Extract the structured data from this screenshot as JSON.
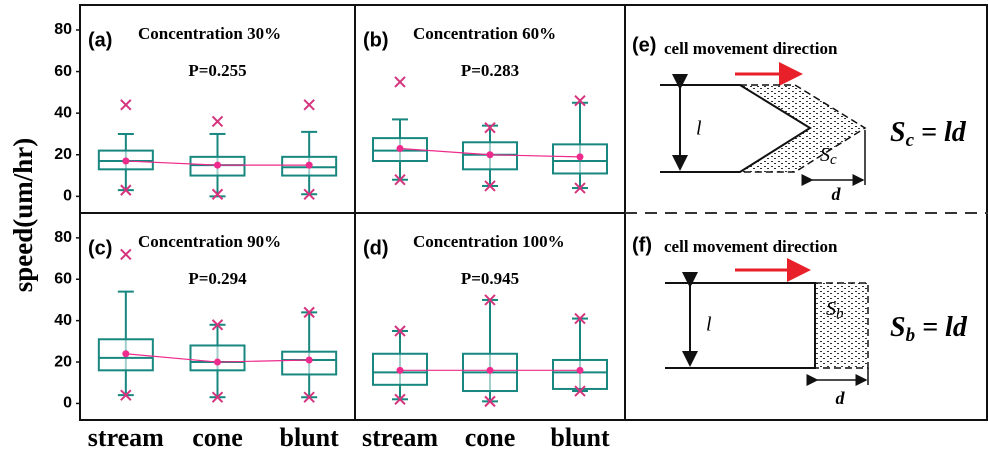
{
  "y_axis_label": "speed(um/hr)",
  "chart_data": [
    {
      "type": "box",
      "panel_label": "(a)",
      "title": "Concentration 30%",
      "annotation": "P=0.255",
      "ylim": [
        -8,
        92
      ],
      "yticks": [
        0,
        20,
        40,
        60,
        80
      ],
      "box_color": "#17877f",
      "mean_color": "#ee2a8c",
      "outlier_color": "#d6337e",
      "boxes": [
        {
          "whislo": 3,
          "q1": 13,
          "med": 17,
          "q3": 22,
          "whishi": 30,
          "mean": 17,
          "min": 3,
          "max": 44
        },
        {
          "whislo": 0,
          "q1": 10,
          "med": 15,
          "q3": 19,
          "whishi": 30,
          "mean": 15,
          "min": 1,
          "max": 36
        },
        {
          "whislo": 1,
          "q1": 10,
          "med": 14,
          "q3": 19,
          "whishi": 31,
          "mean": 15,
          "min": 1,
          "max": 44
        }
      ]
    },
    {
      "type": "box",
      "panel_label": "(b)",
      "title": "Concentration 60%",
      "annotation": "P=0.283",
      "ylim": [
        -8,
        92
      ],
      "box_color": "#17877f",
      "mean_color": "#ee2a8c",
      "outlier_color": "#d6337e",
      "boxes": [
        {
          "whislo": 8,
          "q1": 17,
          "med": 22,
          "q3": 28,
          "whishi": 37,
          "mean": 23,
          "min": 8,
          "max": 55
        },
        {
          "whislo": 5,
          "q1": 13,
          "med": 20,
          "q3": 26,
          "whishi": 34,
          "mean": 20,
          "min": 5,
          "max": 33
        },
        {
          "whislo": 4,
          "q1": 11,
          "med": 17,
          "q3": 25,
          "whishi": 45,
          "mean": 19,
          "min": 4,
          "max": 46
        }
      ]
    },
    {
      "type": "box",
      "panel_label": "(c)",
      "title": "Concentration 90%",
      "annotation": "P=0.294",
      "ylim": [
        -8,
        92
      ],
      "yticks": [
        0,
        20,
        40,
        60,
        80
      ],
      "categories": [
        "stream",
        "cone",
        "blunt"
      ],
      "box_color": "#17877f",
      "mean_color": "#ee2a8c",
      "outlier_color": "#d6337e",
      "boxes": [
        {
          "whislo": 4,
          "q1": 16,
          "med": 22,
          "q3": 31,
          "whishi": 54,
          "mean": 24,
          "min": 4,
          "max": 72
        },
        {
          "whislo": 3,
          "q1": 16,
          "med": 20,
          "q3": 28,
          "whishi": 38,
          "mean": 20,
          "min": 3,
          "max": 38
        },
        {
          "whislo": 3,
          "q1": 14,
          "med": 21,
          "q3": 25,
          "whishi": 44,
          "mean": 21,
          "min": 3,
          "max": 44
        }
      ]
    },
    {
      "type": "box",
      "panel_label": "(d)",
      "title": "Concentration 100%",
      "annotation": "P=0.945",
      "ylim": [
        -8,
        92
      ],
      "categories": [
        "stream",
        "cone",
        "blunt"
      ],
      "box_color": "#17877f",
      "mean_color": "#ee2a8c",
      "outlier_color": "#d6337e",
      "boxes": [
        {
          "whislo": 2,
          "q1": 9,
          "med": 15,
          "q3": 24,
          "whishi": 35,
          "mean": 16,
          "min": 2,
          "max": 35
        },
        {
          "whislo": 1,
          "q1": 6,
          "med": 15,
          "q3": 24,
          "whishi": 50,
          "mean": 16,
          "min": 1,
          "max": 50
        },
        {
          "whislo": 6,
          "q1": 7,
          "med": 15,
          "q3": 21,
          "whishi": 41,
          "mean": 16,
          "min": 6,
          "max": 41
        }
      ]
    }
  ],
  "diagrams": [
    {
      "panel_label": "(e)",
      "caption": "cell movement direction",
      "length": "l",
      "width": "d",
      "symbol": "S",
      "subscript": "c",
      "rhs": " = ld"
    },
    {
      "panel_label": "(f)",
      "caption": "cell movement direction",
      "length": "l",
      "width": "d",
      "symbol": "S",
      "subscript": "b",
      "rhs": " = ld"
    }
  ]
}
